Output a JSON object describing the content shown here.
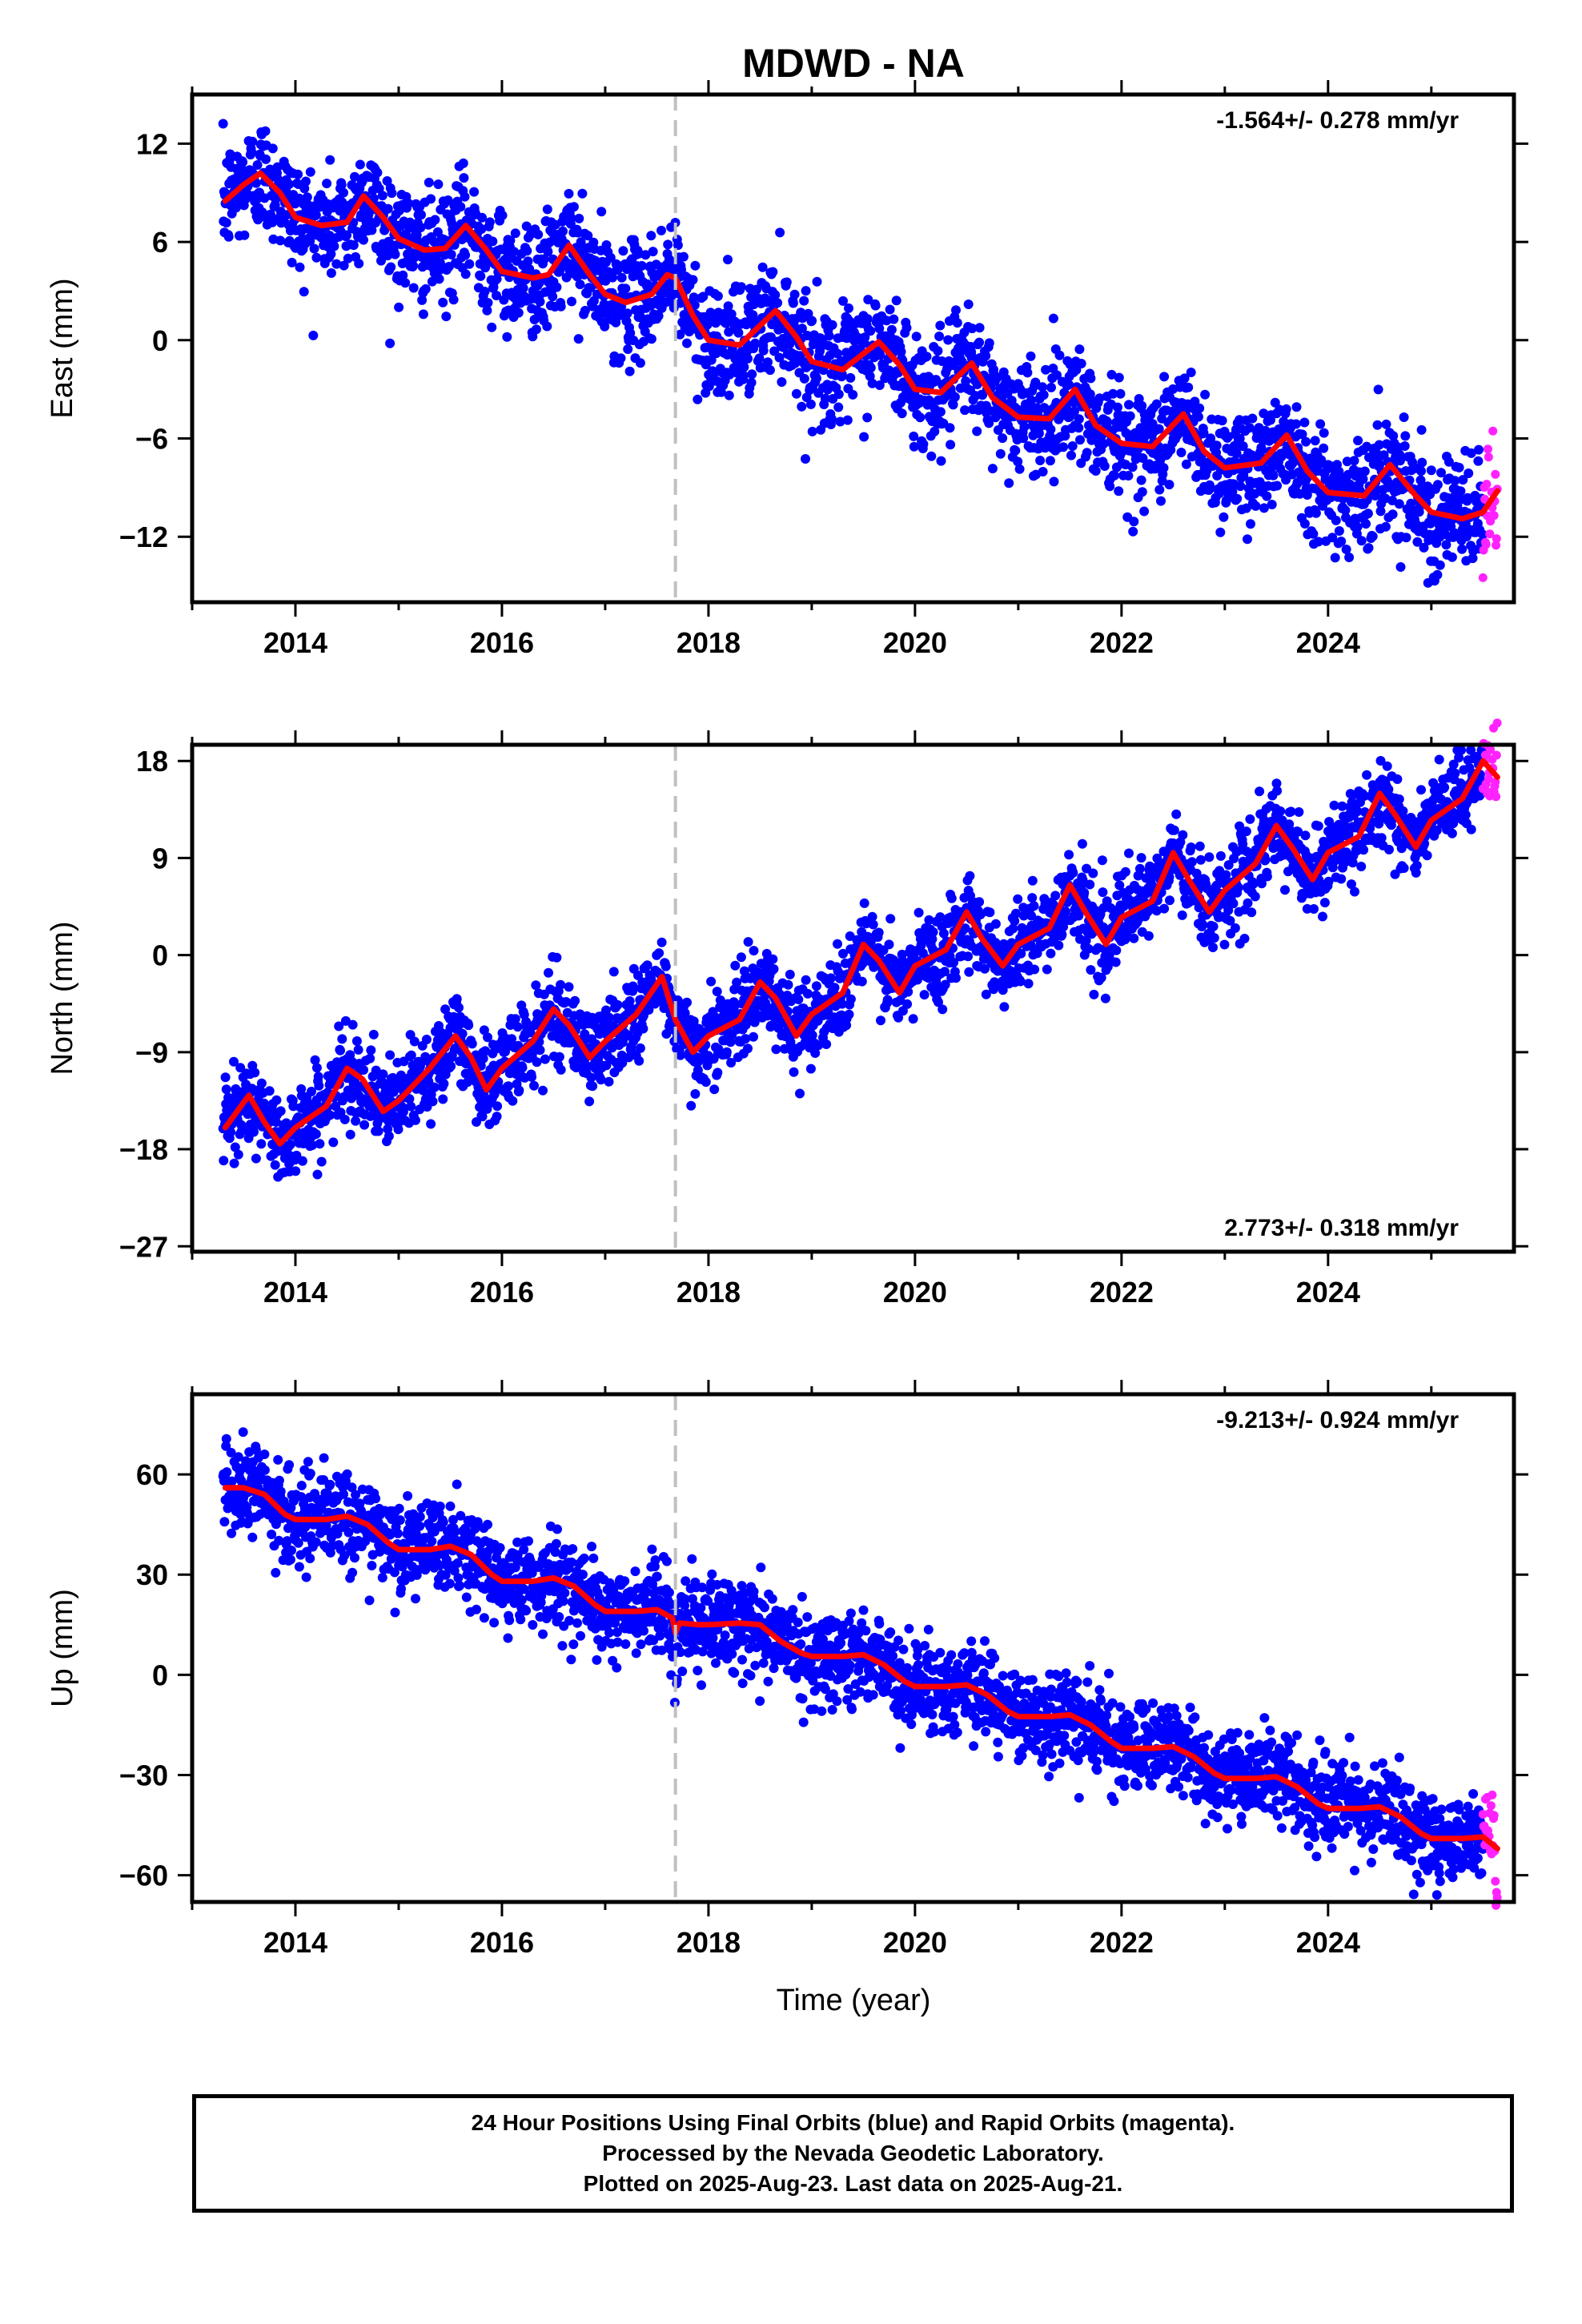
{
  "title": "MDWD - NA",
  "xlabel": "Time (year)",
  "colors": {
    "final_orbits": "#0000ff",
    "rapid_orbits": "#ff22ff",
    "model_fit": "#ff0000",
    "event_line": "#c0c0c0"
  },
  "caption": {
    "line1": "24 Hour Positions Using Final Orbits (blue) and Rapid Orbits (magenta).",
    "line2": "Processed by the Nevada Geodetic Laboratory.",
    "line3": "Plotted on 2025-Aug-23. Last data on 2025-Aug-21."
  },
  "chart_data": [
    {
      "type": "scatter",
      "name": "east",
      "ylabel": "East (mm)",
      "rate_label": "-1.564+/- 0.278 mm/yr",
      "rate_position": "top-right",
      "xlim": [
        2013.0,
        2025.8
      ],
      "ylim": [
        -16,
        15
      ],
      "xticks": [
        "2014",
        "2016",
        "2018",
        "2020",
        "2022",
        "2024"
      ],
      "yticks": [
        "12",
        "6",
        "0",
        "−6",
        "−12"
      ],
      "event_line_x": 2017.68,
      "start_year": 2013.3,
      "end_year": 2025.64,
      "rapid_start": 2025.5,
      "scatter_noise_mm": 1.7,
      "fit": {
        "x": [
          2013.32,
          2013.5,
          2013.66,
          2013.85,
          2014.0,
          2014.25,
          2014.5,
          2014.66,
          2014.85,
          2015.0,
          2015.25,
          2015.45,
          2015.65,
          2015.85,
          2016.0,
          2016.3,
          2016.45,
          2016.65,
          2016.85,
          2017.0,
          2017.2,
          2017.45,
          2017.6,
          2017.68,
          2017.85,
          2018.0,
          2018.3,
          2018.65,
          2018.85,
          2019.0,
          2019.3,
          2019.65,
          2019.85,
          2020.0,
          2020.25,
          2020.55,
          2020.75,
          2021.0,
          2021.3,
          2021.55,
          2021.75,
          2022.0,
          2022.3,
          2022.6,
          2022.8,
          2023.0,
          2023.35,
          2023.6,
          2023.8,
          2024.0,
          2024.35,
          2024.6,
          2024.85,
          2025.0,
          2025.3,
          2025.5,
          2025.64
        ],
        "y": [
          8.5,
          9.5,
          10.2,
          9.0,
          7.5,
          7.0,
          7.2,
          8.8,
          7.5,
          6.2,
          5.5,
          5.6,
          7.0,
          5.5,
          4.2,
          3.8,
          4.0,
          5.8,
          4.0,
          2.8,
          2.3,
          2.8,
          4.0,
          3.8,
          1.5,
          0.0,
          -0.3,
          1.8,
          0.2,
          -1.3,
          -1.8,
          -0.1,
          -1.5,
          -3.0,
          -3.2,
          -1.4,
          -3.5,
          -4.7,
          -4.8,
          -3.0,
          -5.2,
          -6.3,
          -6.5,
          -4.5,
          -6.8,
          -7.8,
          -7.5,
          -5.8,
          -8.0,
          -9.3,
          -9.5,
          -7.6,
          -9.5,
          -10.5,
          -10.9,
          -10.5,
          -9.2
        ]
      }
    },
    {
      "type": "scatter",
      "name": "north",
      "ylabel": "North (mm)",
      "rate_label": "2.773+/- 0.318 mm/yr",
      "rate_position": "bottom-right",
      "xlim": [
        2013.0,
        2025.8
      ],
      "ylim": [
        -27.5,
        19.5
      ],
      "xticks": [
        "2014",
        "2016",
        "2018",
        "2020",
        "2022",
        "2024"
      ],
      "yticks": [
        "18",
        "9",
        "0",
        "−9",
        "−18",
        "−27"
      ],
      "event_line_x": 2017.68,
      "start_year": 2013.3,
      "end_year": 2025.64,
      "rapid_start": 2025.5,
      "scatter_noise_mm": 2.0,
      "fit": {
        "x": [
          2013.32,
          2013.55,
          2013.7,
          2013.85,
          2014.0,
          2014.3,
          2014.5,
          2014.65,
          2014.85,
          2015.0,
          2015.3,
          2015.55,
          2015.7,
          2015.85,
          2016.0,
          2016.3,
          2016.5,
          2016.65,
          2016.85,
          2017.0,
          2017.3,
          2017.55,
          2017.68,
          2017.85,
          2018.0,
          2018.3,
          2018.5,
          2018.65,
          2018.85,
          2019.0,
          2019.3,
          2019.5,
          2019.65,
          2019.85,
          2020.0,
          2020.3,
          2020.5,
          2020.65,
          2020.85,
          2021.0,
          2021.3,
          2021.5,
          2021.65,
          2021.85,
          2022.0,
          2022.3,
          2022.5,
          2022.65,
          2022.85,
          2023.0,
          2023.3,
          2023.5,
          2023.65,
          2023.85,
          2024.0,
          2024.3,
          2024.5,
          2024.65,
          2024.85,
          2025.0,
          2025.3,
          2025.5,
          2025.64
        ],
        "y": [
          -16.0,
          -13.0,
          -15.5,
          -17.5,
          -16.0,
          -14.0,
          -10.5,
          -11.5,
          -14.5,
          -13.5,
          -10.5,
          -7.5,
          -9.5,
          -12.5,
          -10.5,
          -8.0,
          -5.0,
          -6.5,
          -9.5,
          -8.0,
          -5.5,
          -2.0,
          -6.0,
          -9.0,
          -7.5,
          -6.0,
          -2.5,
          -4.0,
          -7.5,
          -5.5,
          -3.5,
          1.0,
          -0.5,
          -3.5,
          -1.0,
          0.5,
          4.0,
          1.5,
          -1.0,
          1.0,
          2.5,
          6.5,
          4.0,
          1.0,
          3.5,
          5.0,
          9.5,
          7.0,
          4.0,
          6.0,
          8.5,
          12.0,
          10.0,
          7.0,
          9.5,
          11.0,
          15.0,
          13.0,
          10.0,
          12.5,
          14.5,
          18.0,
          16.5
        ]
      }
    },
    {
      "type": "scatter",
      "name": "up",
      "ylabel": "Up (mm)",
      "rate_label": "-9.213+/- 0.924 mm/yr",
      "rate_position": "top-right",
      "xlim": [
        2013.0,
        2025.8
      ],
      "ylim": [
        -68,
        84
      ],
      "xticks": [
        "2014",
        "2016",
        "2018",
        "2020",
        "2022",
        "2024"
      ],
      "yticks": [
        "60",
        "30",
        "0",
        "−30",
        "−60"
      ],
      "event_line_x": 2017.68,
      "start_year": 2013.3,
      "end_year": 2025.64,
      "rapid_start": 2025.5,
      "scatter_noise_mm": 6.5,
      "fit": {
        "x": [
          2013.32,
          2013.5,
          2013.7,
          2013.9,
          2014.0,
          2014.3,
          2014.5,
          2014.7,
          2014.9,
          2015.0,
          2015.3,
          2015.5,
          2015.7,
          2015.9,
          2016.0,
          2016.3,
          2016.5,
          2016.7,
          2016.9,
          2017.0,
          2017.3,
          2017.5,
          2017.65,
          2017.68,
          2017.72,
          2017.9,
          2018.0,
          2018.3,
          2018.5,
          2018.7,
          2018.9,
          2019.0,
          2019.3,
          2019.5,
          2019.7,
          2019.9,
          2020.0,
          2020.3,
          2020.5,
          2020.7,
          2020.9,
          2021.0,
          2021.3,
          2021.5,
          2021.7,
          2021.9,
          2022.0,
          2022.3,
          2022.5,
          2022.7,
          2022.9,
          2023.0,
          2023.3,
          2023.5,
          2023.7,
          2023.9,
          2024.0,
          2024.3,
          2024.5,
          2024.7,
          2024.9,
          2025.0,
          2025.3,
          2025.5,
          2025.64
        ],
        "y": [
          56.0,
          56.0,
          54.0,
          48.0,
          46.5,
          46.5,
          47.5,
          45.0,
          39.5,
          37.5,
          37.5,
          38.5,
          36.0,
          30.0,
          28.0,
          28.0,
          29.0,
          26.5,
          21.0,
          19.0,
          19.0,
          19.5,
          17.0,
          12.5,
          15.5,
          15.0,
          15.0,
          15.5,
          15.0,
          10.0,
          6.5,
          5.5,
          5.5,
          6.0,
          3.0,
          -2.0,
          -3.5,
          -3.5,
          -3.0,
          -6.0,
          -11.0,
          -12.5,
          -12.5,
          -12.0,
          -15.0,
          -20.0,
          -22.0,
          -22.0,
          -21.5,
          -24.5,
          -29.5,
          -31.0,
          -31.0,
          -30.5,
          -33.5,
          -38.5,
          -40.0,
          -40.0,
          -39.5,
          -42.5,
          -47.5,
          -49.0,
          -49.0,
          -48.5,
          -52.0
        ]
      }
    }
  ]
}
